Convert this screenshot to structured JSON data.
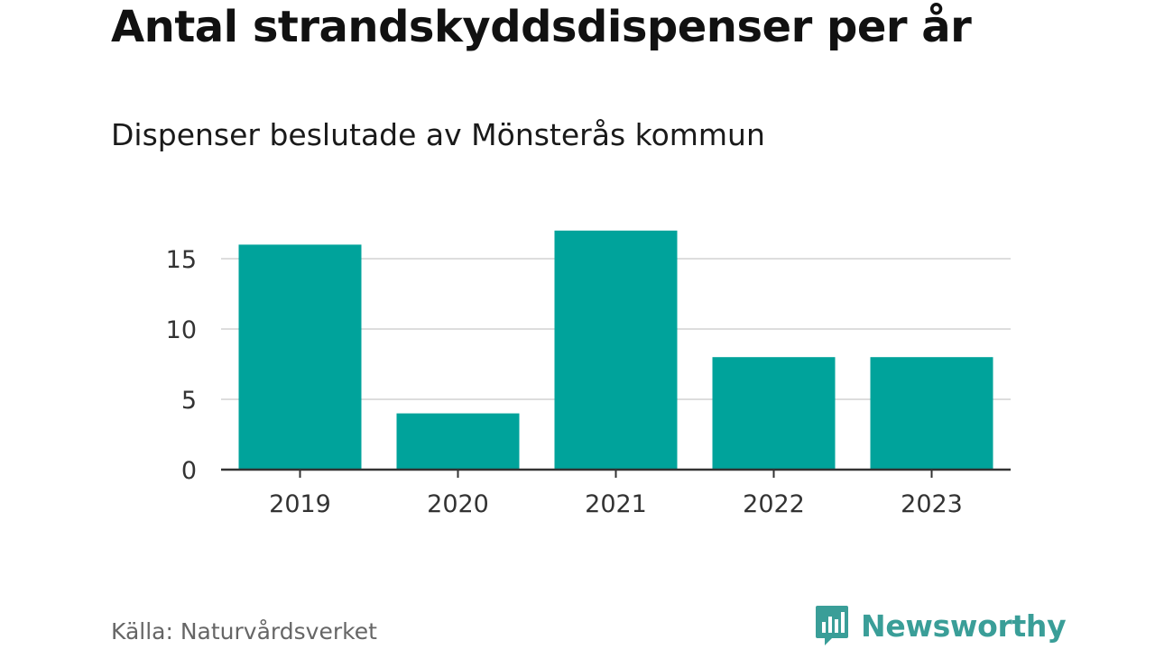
{
  "header": {
    "title": "Antal strandskyddsdispenser per år",
    "subtitle": "Dispenser beslutade av Mönsterås kommun"
  },
  "footer": {
    "source": "Källa: Naturvårdsverket",
    "brand": "Newsworthy",
    "brand_icon": "bar-chart-speech-bubble-icon"
  },
  "colors": {
    "bar": "#00a39b",
    "grid": "#dddddd",
    "axis": "#333333",
    "brand": "#3a9e98"
  },
  "chart_data": {
    "type": "bar",
    "title": "Antal strandskyddsdispenser per år",
    "subtitle": "Dispenser beslutade av Mönsterås kommun",
    "categories": [
      "2019",
      "2020",
      "2021",
      "2022",
      "2023"
    ],
    "values": [
      16,
      4,
      17,
      8,
      8
    ],
    "xlabel": "",
    "ylabel": "",
    "ylim": [
      0,
      17
    ],
    "yticks": [
      0,
      5,
      10,
      15
    ],
    "grid": true,
    "legend": "none"
  }
}
